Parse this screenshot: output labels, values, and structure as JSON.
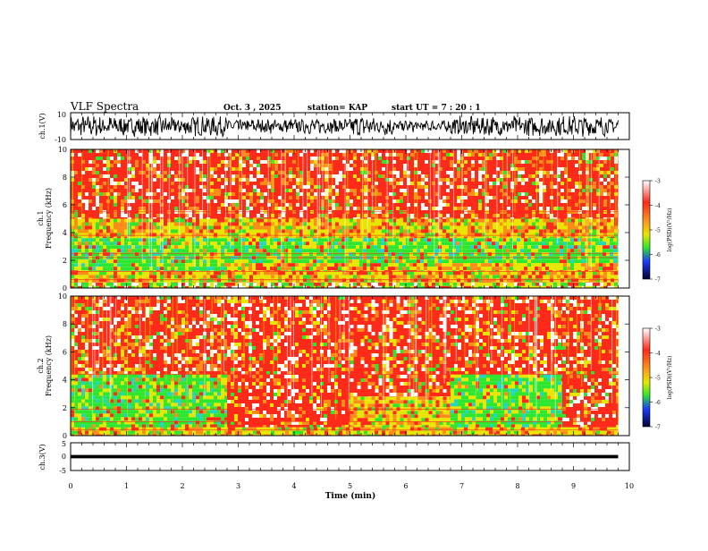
{
  "header": {
    "title": "VLF Spectra",
    "date": "Oct. 3 , 2025",
    "station": "station= KAP",
    "start_ut": "start UT = 7 : 20 : 1"
  },
  "chart_data": [
    {
      "type": "line",
      "name": "ch1-waveform",
      "ylabel": "ch.1(V)",
      "ylim": [
        -10,
        10
      ],
      "yticks": [
        "10",
        "-10"
      ],
      "xlim": [
        0,
        10
      ]
    },
    {
      "type": "heatmap",
      "name": "ch1-spectrogram",
      "ylabel": "Frequency (kHz)",
      "ylabel2": "ch.1",
      "ylim": [
        0,
        10
      ],
      "yticks": [
        "0",
        "2",
        "4",
        "6",
        "8",
        "10"
      ],
      "xlim": [
        0,
        10
      ],
      "data_end_min": 9.8,
      "bands": [
        {
          "x0": 0,
          "x1": 9.8,
          "y0": 0,
          "y1": 0.4,
          "level": "green-mixed"
        },
        {
          "x0": 0,
          "x1": 9.8,
          "y0": 0.4,
          "y1": 1.2,
          "level": "yellow"
        },
        {
          "x0": 0,
          "x1": 2.8,
          "y0": 1.2,
          "y1": 3.6,
          "level": "green"
        },
        {
          "x0": 2.8,
          "x1": 9.8,
          "y0": 1.2,
          "y1": 1.8,
          "level": "yellow"
        },
        {
          "x0": 2.8,
          "x1": 9.8,
          "y0": 1.8,
          "y1": 3.6,
          "level": "green"
        },
        {
          "x0": 0,
          "x1": 9.8,
          "y0": 3.6,
          "y1": 5.0,
          "level": "yellow"
        },
        {
          "x0": 0,
          "x1": 9.8,
          "y0": 5.0,
          "y1": 10.0,
          "level": "red"
        }
      ],
      "line_freqs_khz": [
        0.6,
        1.2,
        2.2,
        2.5,
        3.8,
        5.5
      ]
    },
    {
      "type": "heatmap",
      "name": "ch2-spectrogram",
      "ylabel": "Frequency (kHz)",
      "ylabel2": "ch.2",
      "ylim": [
        0,
        10
      ],
      "yticks": [
        "0",
        "2",
        "4",
        "6",
        "8",
        "10"
      ],
      "xlim": [
        0,
        10
      ],
      "data_end_min": 9.8,
      "bands": [
        {
          "x0": 0,
          "x1": 9.8,
          "y0": 0,
          "y1": 0.6,
          "level": "yellow"
        },
        {
          "x0": 0,
          "x1": 2.8,
          "y0": 0.6,
          "y1": 4.4,
          "level": "green"
        },
        {
          "x0": 0,
          "x1": 2.8,
          "y0": 4.4,
          "y1": 10.0,
          "level": "red"
        },
        {
          "x0": 2.8,
          "x1": 5.0,
          "y0": 0.6,
          "y1": 10.0,
          "level": "red"
        },
        {
          "x0": 5.0,
          "x1": 6.8,
          "y0": 0.6,
          "y1": 2.8,
          "level": "yellow"
        },
        {
          "x0": 5.0,
          "x1": 6.8,
          "y0": 2.8,
          "y1": 10.0,
          "level": "red"
        },
        {
          "x0": 6.8,
          "x1": 8.8,
          "y0": 0.6,
          "y1": 4.4,
          "level": "green"
        },
        {
          "x0": 6.8,
          "x1": 8.8,
          "y0": 4.4,
          "y1": 10.0,
          "level": "red"
        },
        {
          "x0": 8.8,
          "x1": 9.8,
          "y0": 0.6,
          "y1": 10.0,
          "level": "red"
        }
      ],
      "line_freqs_khz": [
        0.4,
        1.0,
        1.9,
        4.4
      ]
    },
    {
      "type": "line",
      "name": "ch3-waveform",
      "ylabel": "ch.3(V)",
      "ylim": [
        -5,
        5
      ],
      "yticks": [
        "5",
        "0",
        "-5"
      ],
      "xlim": [
        0,
        10
      ],
      "xlabel": "Time (min)",
      "xticks": [
        "0",
        "1",
        "2",
        "3",
        "4",
        "5",
        "6",
        "7",
        "8",
        "9",
        "10"
      ],
      "band": [
        -0.6,
        0.6
      ],
      "center": -0.5
    }
  ],
  "colorbars": [
    {
      "name": "ch1",
      "label": "log(PSD)(V²/Hz)",
      "ticks": [
        "-3",
        "-4",
        "-5",
        "-6",
        "-7"
      ],
      "range": [
        -7,
        -3
      ]
    },
    {
      "name": "ch2",
      "label": "log(PSD)(V²/Hz)",
      "ticks": [
        "-3",
        "-4",
        "-5",
        "-6",
        "-7"
      ],
      "range": [
        -7,
        -3
      ]
    }
  ],
  "colors": {
    "red": "#ff2a1a",
    "orange": "#ff8c1a",
    "yellow": "#e6e600",
    "green": "#2ee62e",
    "cyan": "#22d6c0",
    "blue": "#1a3cff",
    "white": "#ffffff"
  }
}
